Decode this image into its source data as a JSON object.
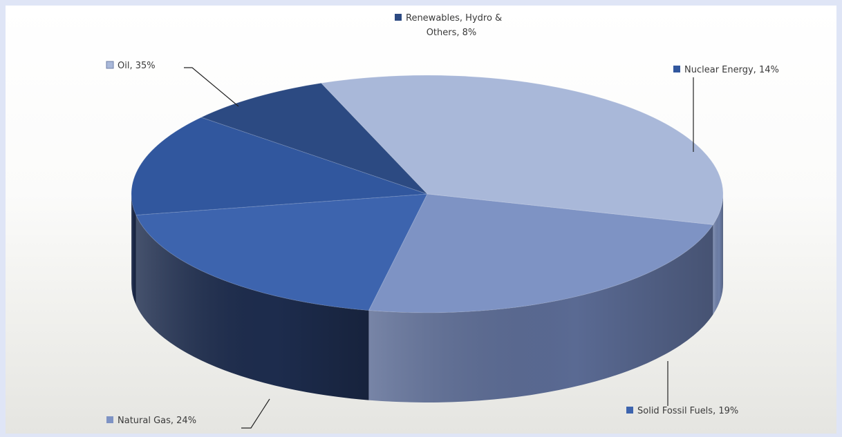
{
  "chart_data": {
    "type": "pie",
    "three_d": true,
    "categories": [
      "Oil",
      "Natural Gas",
      "Solid Fossil Fuels",
      "Nuclear Energy",
      "Renewables, Hydro & Others"
    ],
    "values": [
      35,
      24,
      19,
      14,
      8
    ],
    "labels": [
      "Oil, 35%",
      "Natural Gas, 24%",
      "Solid Fossil Fuels, 19%",
      "Nuclear Energy, 14%",
      "Renewables, Hydro & Others, 8%"
    ],
    "label_lines": [
      [
        "Oil, 35%"
      ],
      [
        "Natural Gas, 24%"
      ],
      [
        "Solid Fossil Fuels, 19%"
      ],
      [
        "Nuclear Energy, 14%"
      ],
      [
        "Renewables, Hydro &",
        "Others, 8%"
      ]
    ],
    "colors": [
      "#a9b8d9",
      "#7e93c4",
      "#3d64ae",
      "#31579e",
      "#2c4a82"
    ],
    "side_colors": [
      "#6e7fa8",
      "#5a6a93",
      "#1d2c4d",
      "#1a2848",
      "#1a2848"
    ],
    "title": "",
    "legend": "none"
  }
}
